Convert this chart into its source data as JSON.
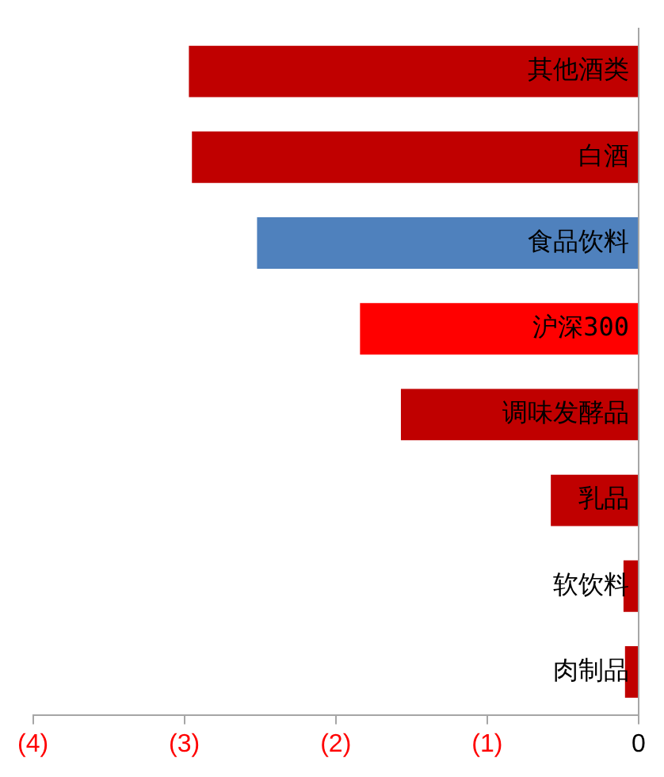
{
  "chart_data": {
    "type": "bar",
    "orientation": "horizontal",
    "categories": [
      "其他酒类",
      "白酒",
      "食品饮料",
      "沪深300",
      "调味发酵品",
      "乳品",
      "软饮料",
      "肉制品"
    ],
    "values": [
      -2.97,
      -2.95,
      -2.52,
      -1.84,
      -1.57,
      -0.58,
      -0.1,
      -0.09
    ],
    "colors": [
      "#c00000",
      "#c00000",
      "#4f81bd",
      "#ff0000",
      "#c00000",
      "#c00000",
      "#c00000",
      "#c00000"
    ],
    "xlim": [
      -4,
      0
    ],
    "xticks": [
      {
        "value": -4,
        "label": "(4)"
      },
      {
        "value": -3,
        "label": "(3)"
      },
      {
        "value": -2,
        "label": "(2)"
      },
      {
        "value": -1,
        "label": "(1)"
      },
      0
    ],
    "grid": false,
    "legend": false
  }
}
